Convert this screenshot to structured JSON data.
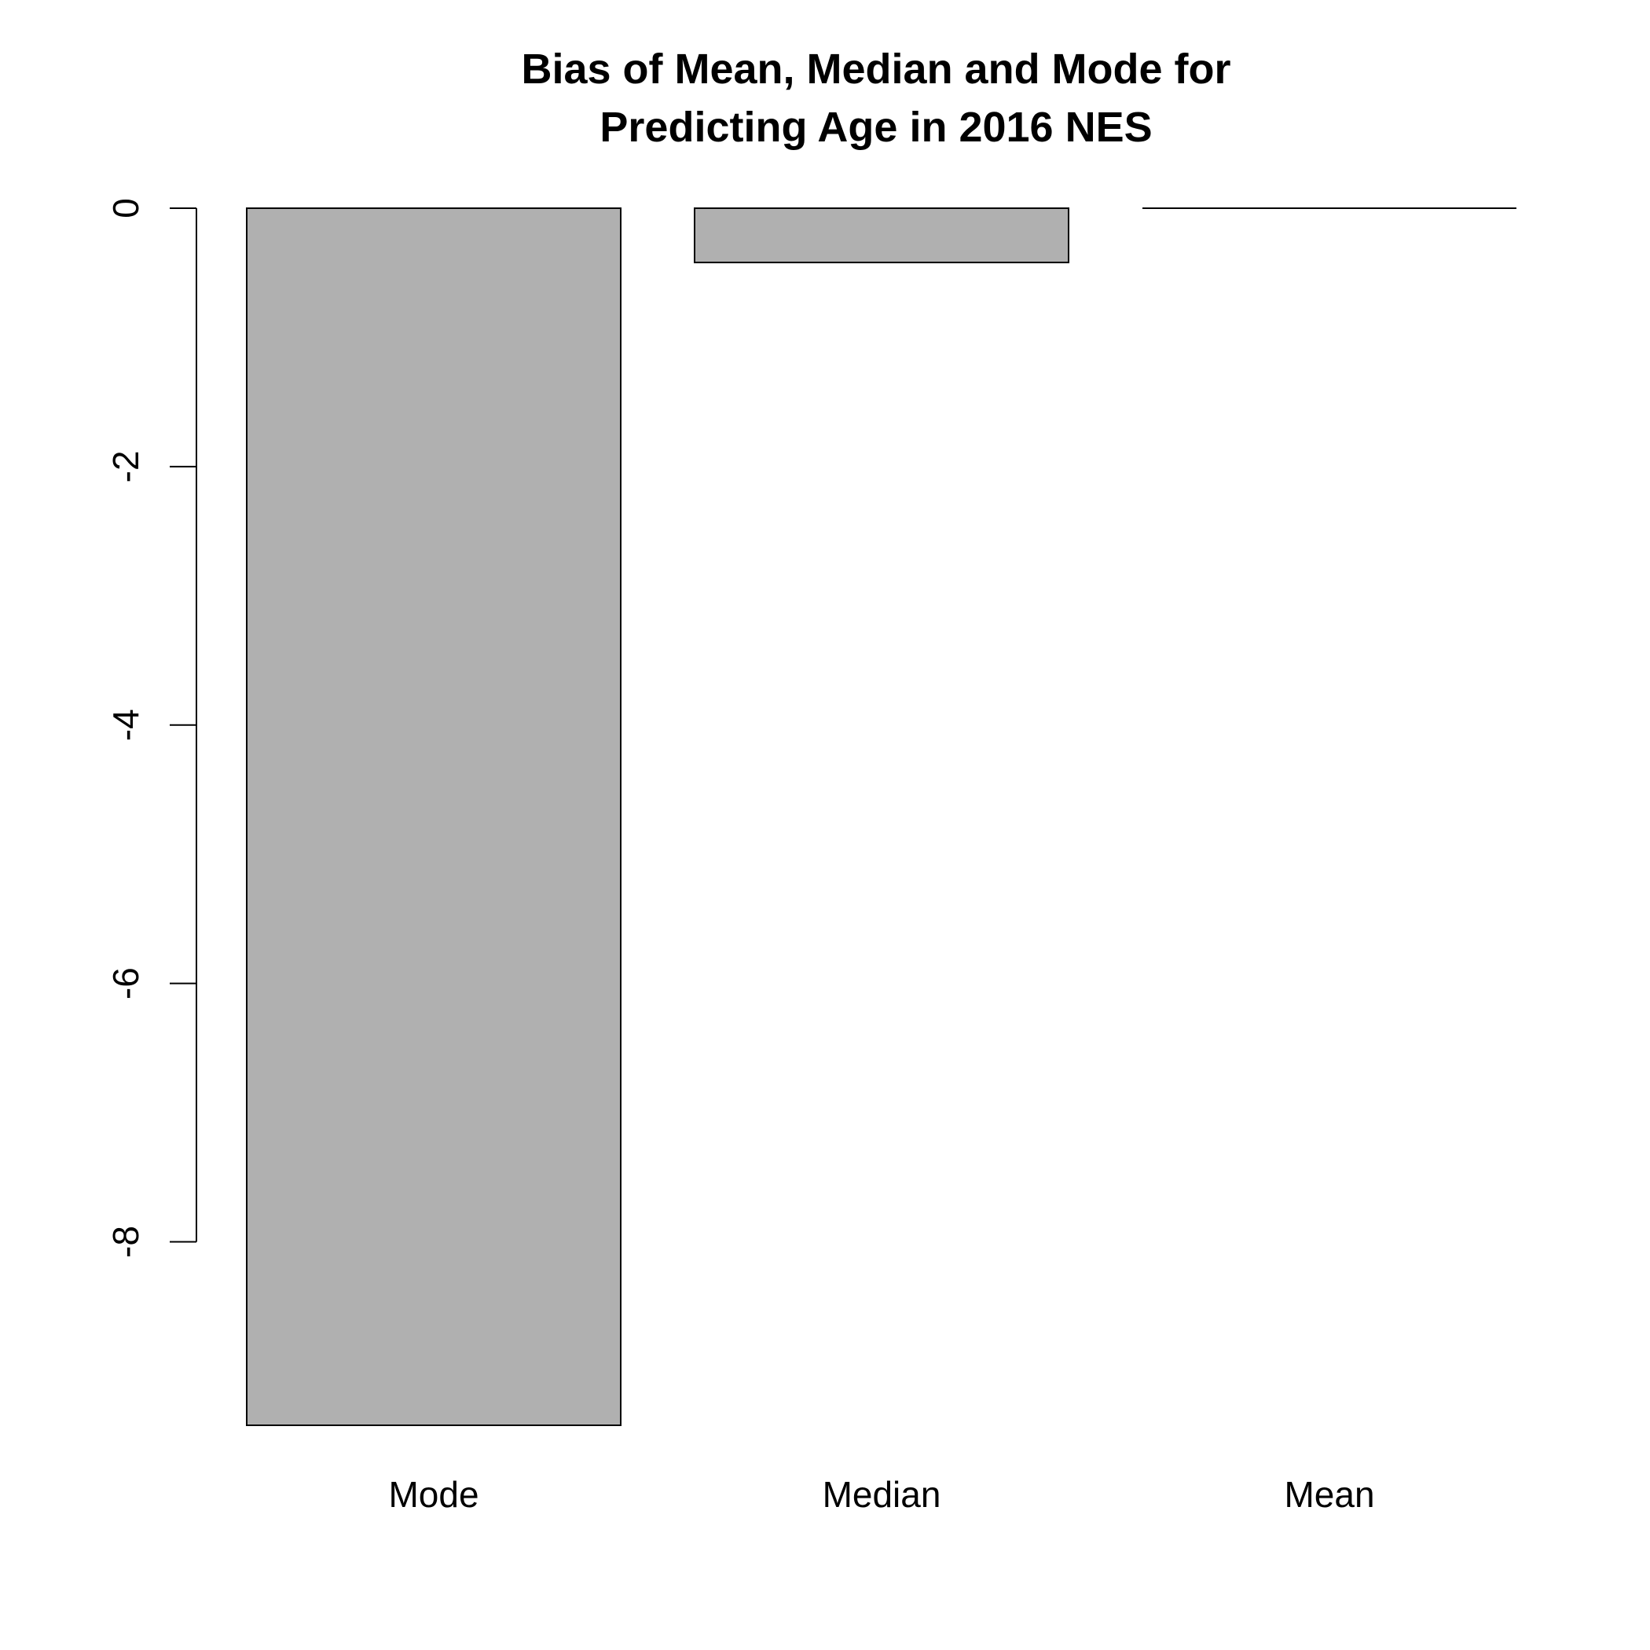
{
  "chart_data": {
    "type": "bar",
    "title_lines": [
      "Bias of Mean, Median and Mode for",
      "Predicting Age in 2016 NES"
    ],
    "categories": [
      "Mode",
      "Median",
      "Mean"
    ],
    "values": [
      -9.42,
      -0.42,
      0.0
    ],
    "xlabel": "",
    "ylabel": "",
    "ylim": [
      -9.42,
      0
    ],
    "yticks": [
      0,
      -2,
      -4,
      -6,
      -8
    ],
    "ytick_labels": [
      "0",
      "-2",
      "-4",
      "-6",
      "-8"
    ],
    "grid": false,
    "bar_color": "#b0b0b0"
  }
}
